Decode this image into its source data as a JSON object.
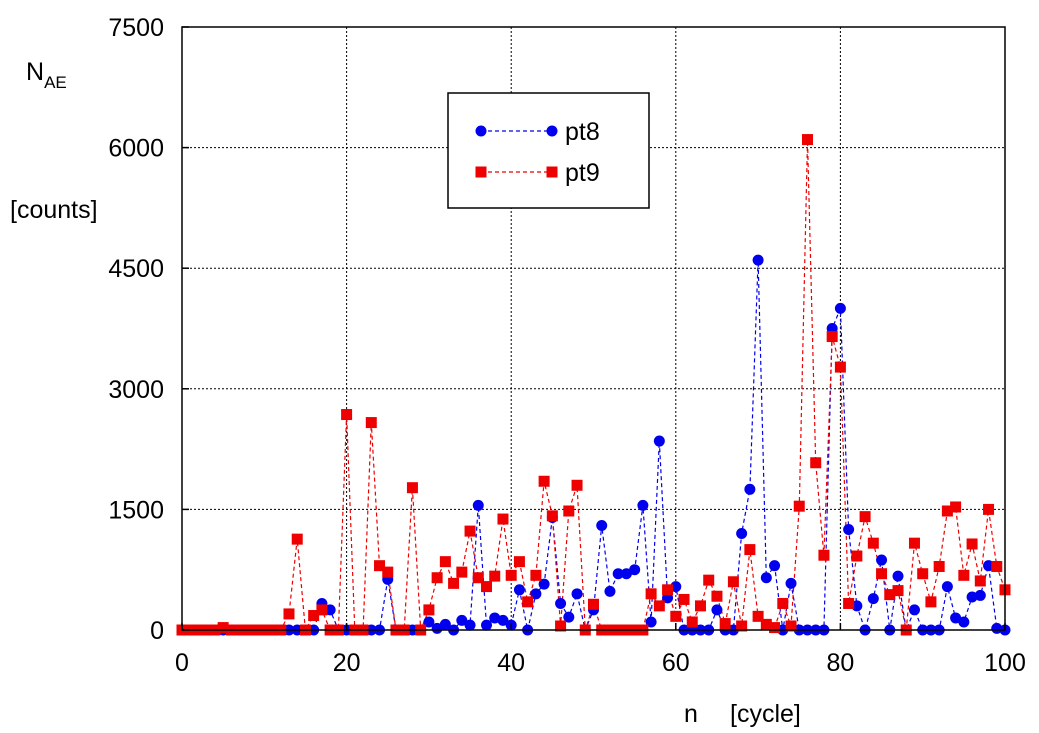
{
  "chart_data": {
    "type": "scatter",
    "xlabel_var": "n",
    "xlabel_unit": "[cycle]",
    "ylabel_var": "N",
    "ylabel_sub": "AE",
    "ylabel_unit": "[counts]",
    "xlim": [
      0,
      100
    ],
    "ylim": [
      0,
      7500
    ],
    "xticks": [
      0,
      20,
      40,
      60,
      80,
      100
    ],
    "yticks": [
      0,
      1500,
      3000,
      4500,
      6000,
      7500
    ],
    "grid": true,
    "legend_position": "top-center",
    "series": [
      {
        "name": "pt8",
        "color": "#0000ee",
        "marker": "circle",
        "line": "dashed",
        "x": [
          0,
          1,
          2,
          3,
          4,
          5,
          6,
          7,
          8,
          9,
          10,
          11,
          12,
          13,
          14,
          15,
          16,
          17,
          18,
          19,
          20,
          21,
          22,
          23,
          24,
          25,
          26,
          27,
          28,
          29,
          30,
          31,
          32,
          33,
          34,
          35,
          36,
          37,
          38,
          39,
          40,
          41,
          42,
          43,
          44,
          45,
          46,
          47,
          48,
          49,
          50,
          51,
          52,
          53,
          54,
          55,
          56,
          57,
          58,
          59,
          60,
          61,
          62,
          63,
          64,
          65,
          66,
          67,
          68,
          69,
          70,
          71,
          72,
          73,
          74,
          75,
          76,
          77,
          78,
          79,
          80,
          81,
          82,
          83,
          84,
          85,
          86,
          87,
          88,
          89,
          90,
          91,
          92,
          93,
          94,
          95,
          96,
          97,
          98,
          99,
          100
        ],
        "y": [
          0,
          0,
          0,
          0,
          0,
          0,
          0,
          0,
          0,
          0,
          0,
          0,
          0,
          0,
          0,
          0,
          0,
          330,
          250,
          0,
          0,
          0,
          0,
          0,
          0,
          630,
          0,
          0,
          0,
          0,
          100,
          20,
          70,
          0,
          120,
          60,
          1550,
          60,
          150,
          120,
          60,
          500,
          0,
          450,
          570,
          1400,
          330,
          160,
          450,
          0,
          250,
          1300,
          480,
          700,
          700,
          750,
          1550,
          100,
          2350,
          400,
          540,
          0,
          0,
          0,
          0,
          250,
          0,
          0,
          1200,
          1750,
          4600,
          650,
          800,
          0,
          580,
          0,
          0,
          0,
          0,
          3750,
          4000,
          1250,
          300,
          0,
          390,
          870,
          0,
          670,
          0,
          250,
          0,
          0,
          0,
          540,
          150,
          100,
          410,
          430,
          800,
          20,
          0
        ]
      },
      {
        "name": "pt9",
        "color": "#ee0000",
        "marker": "square",
        "line": "dashed",
        "x": [
          0,
          1,
          2,
          3,
          4,
          5,
          6,
          7,
          8,
          9,
          10,
          11,
          12,
          13,
          14,
          15,
          16,
          17,
          18,
          19,
          20,
          21,
          22,
          23,
          24,
          25,
          26,
          27,
          28,
          29,
          30,
          31,
          32,
          33,
          34,
          35,
          36,
          37,
          38,
          39,
          40,
          41,
          42,
          43,
          44,
          45,
          46,
          47,
          48,
          49,
          50,
          51,
          52,
          53,
          54,
          55,
          56,
          57,
          58,
          59,
          60,
          61,
          62,
          63,
          64,
          65,
          66,
          67,
          68,
          69,
          70,
          71,
          72,
          73,
          74,
          75,
          76,
          77,
          78,
          79,
          80,
          81,
          82,
          83,
          84,
          85,
          86,
          87,
          88,
          89,
          90,
          91,
          92,
          93,
          94,
          95,
          96,
          97,
          98,
          99,
          100
        ],
        "y": [
          0,
          0,
          0,
          0,
          0,
          30,
          0,
          0,
          0,
          0,
          0,
          0,
          0,
          200,
          1130,
          0,
          180,
          250,
          0,
          0,
          2680,
          0,
          0,
          2580,
          800,
          720,
          0,
          0,
          1770,
          0,
          250,
          650,
          850,
          580,
          720,
          1230,
          650,
          540,
          670,
          1380,
          680,
          850,
          350,
          680,
          1850,
          1420,
          50,
          1480,
          1800,
          0,
          320,
          0,
          0,
          0,
          0,
          0,
          0,
          450,
          300,
          500,
          170,
          380,
          100,
          300,
          620,
          420,
          80,
          600,
          50,
          1000,
          170,
          70,
          30,
          330,
          50,
          1540,
          6100,
          2080,
          930,
          3650,
          3270,
          330,
          920,
          1410,
          1080,
          700,
          440,
          490,
          0,
          1080,
          700,
          350,
          790,
          1480,
          1530,
          680,
          1070,
          610,
          1500,
          790,
          500
        ]
      }
    ]
  }
}
